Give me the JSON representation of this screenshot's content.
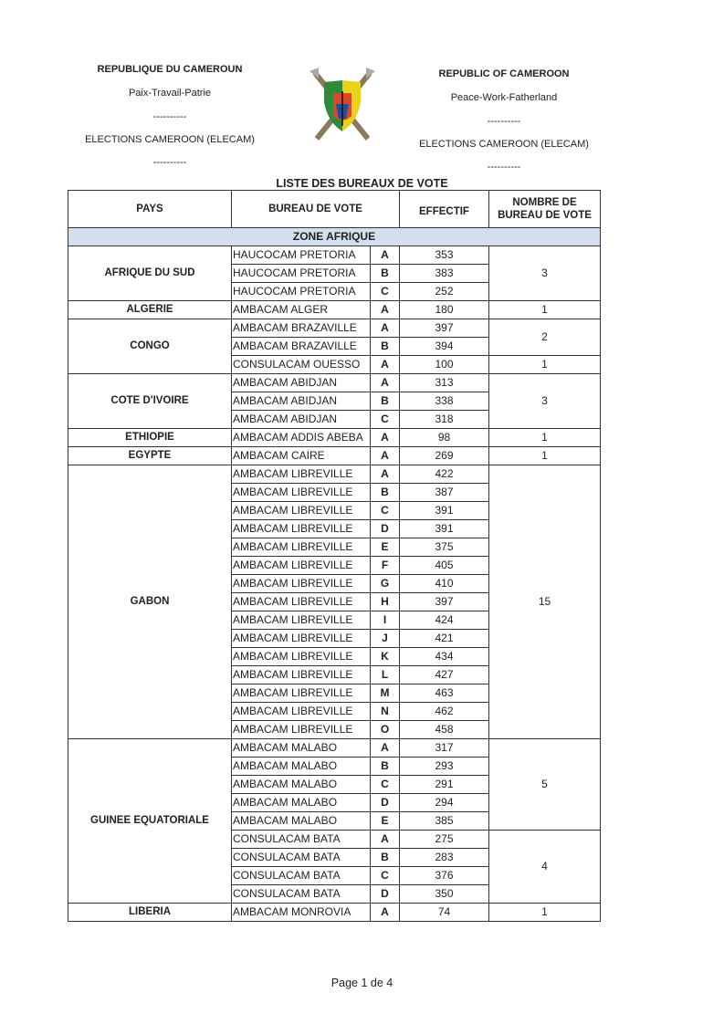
{
  "header_left": {
    "country": "REPUBLIQUE DU CAMEROUN",
    "motto": "Paix-Travail-Patrie",
    "sep1": "----------",
    "org": "ELECTIONS CAMEROON (ELECAM)",
    "sep2": "----------"
  },
  "header_right": {
    "country": "REPUBLIC OF CAMEROON",
    "motto": "Peace-Work-Fatherland",
    "sep1": "----------",
    "org": "ELECTIONS CAMEROON (ELECAM)",
    "sep2": "----------"
  },
  "emblem": "cameroon-coat-of-arms",
  "title": "LISTE DES BUREAUX DE VOTE",
  "columns": {
    "pays": "PAYS",
    "bureau": "BUREAU DE VOTE",
    "effectif": "EFFECTIF",
    "nombre": "NOMBRE DE BUREAU DE VOTE"
  },
  "zone": "ZONE AFRIQUE",
  "countries": [
    {
      "name": "AFRIQUE DU SUD",
      "groups": [
        {
          "count": "3",
          "rows": [
            {
              "bureau": "HAUCOCAM PRETORIA",
              "letter": "A",
              "effectif": "353"
            },
            {
              "bureau": "HAUCOCAM PRETORIA",
              "letter": "B",
              "effectif": "383"
            },
            {
              "bureau": "HAUCOCAM PRETORIA",
              "letter": "C",
              "effectif": "252"
            }
          ]
        }
      ]
    },
    {
      "name": "ALGERIE",
      "groups": [
        {
          "count": "1",
          "rows": [
            {
              "bureau": "AMBACAM ALGER",
              "letter": "A",
              "effectif": "180"
            }
          ]
        }
      ]
    },
    {
      "name": "CONGO",
      "groups": [
        {
          "count": "2",
          "rows": [
            {
              "bureau": "AMBACAM BRAZAVILLE",
              "letter": "A",
              "effectif": "397"
            },
            {
              "bureau": "AMBACAM BRAZAVILLE",
              "letter": "B",
              "effectif": "394"
            }
          ]
        },
        {
          "count": "1",
          "rows": [
            {
              "bureau": "CONSULACAM OUESSO",
              "letter": "A",
              "effectif": "100"
            }
          ]
        }
      ]
    },
    {
      "name": "COTE D'IVOIRE",
      "groups": [
        {
          "count": "3",
          "rows": [
            {
              "bureau": "AMBACAM ABIDJAN",
              "letter": "A",
              "effectif": "313"
            },
            {
              "bureau": "AMBACAM ABIDJAN",
              "letter": "B",
              "effectif": "338"
            },
            {
              "bureau": "AMBACAM ABIDJAN",
              "letter": "C",
              "effectif": "318"
            }
          ]
        }
      ]
    },
    {
      "name": "ETHIOPIE",
      "groups": [
        {
          "count": "1",
          "rows": [
            {
              "bureau": "AMBACAM ADDIS ABEBA",
              "letter": "A",
              "effectif": "98"
            }
          ]
        }
      ]
    },
    {
      "name": "EGYPTE",
      "groups": [
        {
          "count": "1",
          "rows": [
            {
              "bureau": "AMBACAM CAIRE",
              "letter": "A",
              "effectif": "269"
            }
          ]
        }
      ]
    },
    {
      "name": "GABON",
      "groups": [
        {
          "count": "15",
          "rows": [
            {
              "bureau": "AMBACAM LIBREVILLE",
              "letter": "A",
              "effectif": "422"
            },
            {
              "bureau": "AMBACAM LIBREVILLE",
              "letter": "B",
              "effectif": "387"
            },
            {
              "bureau": "AMBACAM LIBREVILLE",
              "letter": "C",
              "effectif": "391"
            },
            {
              "bureau": "AMBACAM LIBREVILLE",
              "letter": "D",
              "effectif": "391"
            },
            {
              "bureau": "AMBACAM LIBREVILLE",
              "letter": "E",
              "effectif": "375"
            },
            {
              "bureau": "AMBACAM LIBREVILLE",
              "letter": "F",
              "effectif": "405"
            },
            {
              "bureau": "AMBACAM LIBREVILLE",
              "letter": "G",
              "effectif": "410"
            },
            {
              "bureau": "AMBACAM LIBREVILLE",
              "letter": "H",
              "effectif": "397"
            },
            {
              "bureau": "AMBACAM LIBREVILLE",
              "letter": "I",
              "effectif": "424"
            },
            {
              "bureau": "AMBACAM LIBREVILLE",
              "letter": "J",
              "effectif": "421"
            },
            {
              "bureau": "AMBACAM LIBREVILLE",
              "letter": "K",
              "effectif": "434"
            },
            {
              "bureau": "AMBACAM LIBREVILLE",
              "letter": "L",
              "effectif": "427"
            },
            {
              "bureau": "AMBACAM LIBREVILLE",
              "letter": "M",
              "effectif": "463"
            },
            {
              "bureau": "AMBACAM LIBREVILLE",
              "letter": "N",
              "effectif": "462"
            },
            {
              "bureau": "AMBACAM LIBREVILLE",
              "letter": "O",
              "effectif": "458"
            }
          ]
        }
      ]
    },
    {
      "name": "GUINEE EQUATORIALE",
      "groups": [
        {
          "count": "5",
          "rows": [
            {
              "bureau": "AMBACAM MALABO",
              "letter": "A",
              "effectif": "317"
            },
            {
              "bureau": "AMBACAM MALABO",
              "letter": "B",
              "effectif": "293"
            },
            {
              "bureau": "AMBACAM MALABO",
              "letter": "C",
              "effectif": "291"
            },
            {
              "bureau": "AMBACAM MALABO",
              "letter": "D",
              "effectif": "294"
            },
            {
              "bureau": "AMBACAM MALABO",
              "letter": "E",
              "effectif": "385"
            }
          ]
        },
        {
          "count": "4",
          "rows": [
            {
              "bureau": "CONSULACAM BATA",
              "letter": "A",
              "effectif": "275"
            },
            {
              "bureau": "CONSULACAM BATA",
              "letter": "B",
              "effectif": "283"
            },
            {
              "bureau": "CONSULACAM BATA",
              "letter": "C",
              "effectif": "376"
            },
            {
              "bureau": "CONSULACAM BATA",
              "letter": "D",
              "effectif": "350"
            }
          ]
        }
      ]
    },
    {
      "name": "LIBERIA",
      "groups": [
        {
          "count": "1",
          "rows": [
            {
              "bureau": "AMBACAM MONROVIA",
              "letter": "A",
              "effectif": "74"
            }
          ]
        }
      ]
    }
  ],
  "footer": "Page 1 de 4"
}
